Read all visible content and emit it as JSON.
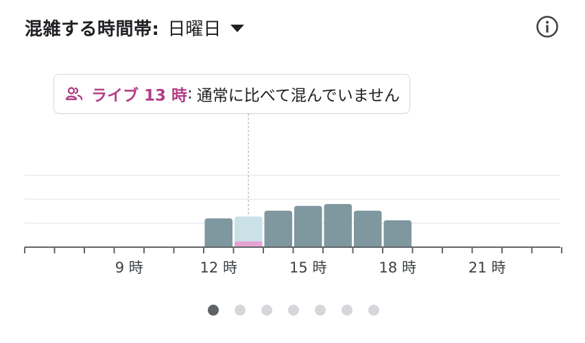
{
  "header": {
    "title": "混雑する時間帯:",
    "day": "日曜日",
    "icons": {
      "dropdown": "caret-down-icon",
      "info": "info-icon"
    }
  },
  "tooltip": {
    "icon": "people-icon",
    "live_label": "ライブ 13 時",
    "separator": ":",
    "description": "通常に比べて混んでいません"
  },
  "colors": {
    "bar": "#7f979f",
    "selected_bar": "#c9e1e7",
    "live": "#e5a3d3",
    "live_text": "#b13d86",
    "grid": "#e8eaed",
    "axis": "#5f6368"
  },
  "chart_data": {
    "type": "bar",
    "hours": [
      6,
      7,
      8,
      9,
      10,
      11,
      12,
      13,
      14,
      15,
      16,
      17,
      18,
      19,
      20,
      21,
      22,
      23
    ],
    "values": [
      0,
      0,
      0,
      0,
      0,
      0,
      30,
      32,
      38,
      43,
      45,
      38,
      28,
      0,
      0,
      0,
      0,
      0
    ],
    "live_hour": 13,
    "live_value": 6,
    "selected_hour": 13,
    "x_tick_labels": [
      {
        "hour": 9,
        "label": "9 時"
      },
      {
        "hour": 12,
        "label": "12 時"
      },
      {
        "hour": 15,
        "label": "15 時"
      },
      {
        "hour": 18,
        "label": "18 時"
      },
      {
        "hour": 21,
        "label": "21 時"
      }
    ],
    "ylim": [
      0,
      100
    ],
    "grid": true
  },
  "pagination": {
    "count": 7,
    "active": 0
  }
}
